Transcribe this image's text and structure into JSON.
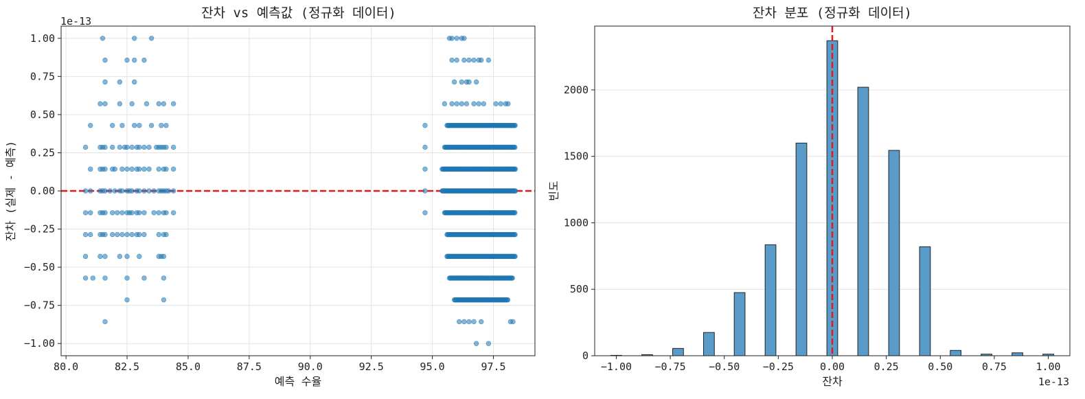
{
  "chart_data": [
    {
      "type": "scatter",
      "title": "잔차 vs 예측값 (정규화 데이터)",
      "xlabel": "예측 수율",
      "ylabel": "잔차 (실제 - 예측)",
      "xlim": [
        79.8,
        99.2
      ],
      "ylim": [
        -1.08,
        1.08
      ],
      "y_offset_label": "1e-13",
      "xticks": [
        "80.0",
        "82.5",
        "85.0",
        "87.5",
        "90.0",
        "92.5",
        "95.0",
        "97.5"
      ],
      "yticks": [
        "−1.00",
        "−0.75",
        "−0.50",
        "−0.25",
        "0.00",
        "0.25",
        "0.50",
        "0.75",
        "1.00"
      ],
      "grid": true,
      "point_color": "#1f77b4",
      "reference_line": {
        "y": 0,
        "color": "#e31a1c",
        "style": "dashed"
      },
      "y_levels": [
        -1.0,
        -0.857,
        -0.714,
        -0.571,
        -0.429,
        -0.286,
        -0.143,
        0.0,
        0.143,
        0.286,
        0.429,
        0.571,
        0.714,
        0.857,
        1.0
      ],
      "clusters": [
        {
          "x_range": [
            80.8,
            84.5
          ],
          "rows": [
            {
              "y": 1.0,
              "x": [
                81.5,
                82.8,
                83.5
              ]
            },
            {
              "y": 0.857,
              "x": [
                81.6,
                82.5,
                82.8,
                83.2
              ]
            },
            {
              "y": 0.714,
              "x": [
                81.6,
                82.2,
                82.8
              ]
            },
            {
              "y": 0.571,
              "x": [
                81.4,
                81.6,
                82.2,
                82.7,
                83.3,
                83.8,
                84.0,
                84.4
              ]
            },
            {
              "y": 0.429,
              "x": [
                81.0,
                81.9,
                82.3,
                82.8,
                83.0,
                83.5,
                83.9,
                84.1
              ]
            },
            {
              "y": 0.286,
              "x": [
                80.8,
                81.4,
                81.5,
                81.6,
                81.9,
                82.2,
                82.4,
                82.5,
                82.7,
                82.9,
                83.0,
                83.2,
                83.4,
                83.7,
                83.8,
                83.9,
                84.0,
                84.1,
                84.4
              ]
            },
            {
              "y": 0.143,
              "x": [
                81.0,
                81.4,
                81.5,
                81.6,
                81.9,
                82.0,
                82.3,
                82.5,
                82.7,
                82.9,
                83.0,
                83.2,
                83.4,
                83.8,
                84.0,
                84.1,
                84.4
              ]
            },
            {
              "y": 0.0,
              "x": [
                80.8,
                81.0,
                81.4,
                81.5,
                81.6,
                81.8,
                82.0,
                82.2,
                82.3,
                82.5,
                82.6,
                82.7,
                82.9,
                83.0,
                83.2,
                83.4,
                83.6,
                83.8,
                83.9,
                84.0,
                84.1,
                84.2,
                84.4
              ]
            },
            {
              "y": -0.143,
              "x": [
                80.8,
                81.0,
                81.4,
                81.5,
                81.6,
                81.9,
                82.1,
                82.3,
                82.5,
                82.6,
                82.7,
                82.9,
                83.0,
                83.2,
                83.6,
                83.8,
                84.0,
                84.1,
                84.4
              ]
            },
            {
              "y": -0.286,
              "x": [
                80.8,
                81.0,
                81.4,
                81.5,
                81.6,
                81.9,
                82.1,
                82.3,
                82.5,
                82.7,
                82.9,
                83.0,
                83.2,
                83.8,
                84.0,
                84.1
              ]
            },
            {
              "y": -0.429,
              "x": [
                80.8,
                81.4,
                81.6,
                82.2,
                82.5,
                83.0,
                83.8,
                83.9,
                84.0
              ]
            },
            {
              "y": -0.571,
              "x": [
                80.8,
                81.1,
                81.6,
                82.5,
                83.2,
                84.0
              ]
            },
            {
              "y": -0.714,
              "x": [
                82.5,
                84.0
              ]
            },
            {
              "y": -0.857,
              "x": [
                81.6
              ]
            }
          ]
        },
        {
          "x_range": [
            94.7,
            98.4
          ],
          "rows": [
            {
              "y": 1.0,
              "x": [
                95.7,
                95.8,
                96.0,
                96.2,
                96.3
              ]
            },
            {
              "y": 0.857,
              "x": [
                95.8,
                96.0,
                96.3,
                96.5,
                96.7,
                96.9,
                97.0,
                97.3
              ]
            },
            {
              "y": 0.714,
              "x": [
                95.9,
                96.2,
                96.4,
                96.5,
                96.8
              ]
            },
            {
              "y": 0.571,
              "x": [
                95.5,
                95.8,
                96.0,
                96.2,
                96.4,
                96.7,
                96.9,
                97.1,
                97.6,
                97.8,
                98.0,
                98.1
              ]
            },
            {
              "y": 0.429,
              "x": [
                94.7
              ],
              "band": [
                95.6,
                98.4
              ]
            },
            {
              "y": 0.286,
              "x": [
                94.7
              ],
              "band": [
                95.5,
                98.4
              ]
            },
            {
              "y": 0.143,
              "x": [
                94.7
              ],
              "band": [
                95.4,
                98.4
              ]
            },
            {
              "y": 0.0,
              "x": [
                94.7
              ],
              "band": [
                95.4,
                98.4
              ]
            },
            {
              "y": -0.143,
              "x": [
                94.7
              ],
              "band": [
                95.5,
                98.4
              ]
            },
            {
              "y": -0.286,
              "x": [],
              "band": [
                95.6,
                98.4
              ]
            },
            {
              "y": -0.429,
              "x": [],
              "band": [
                95.6,
                98.4
              ]
            },
            {
              "y": -0.571,
              "x": [],
              "band": [
                95.7,
                98.3
              ]
            },
            {
              "y": -0.714,
              "x": [],
              "band": [
                95.9,
                98.1
              ]
            },
            {
              "y": -0.857,
              "x": [
                96.1,
                96.3,
                96.5,
                96.7,
                97.0,
                98.2,
                98.3
              ]
            },
            {
              "y": -1.0,
              "x": [
                96.8,
                97.3
              ]
            }
          ]
        }
      ]
    },
    {
      "type": "bar",
      "title": "잔차 분포 (정규화 데이터)",
      "xlabel": "잔차",
      "ylabel": "빈도",
      "xlim": [
        -1.1,
        1.1
      ],
      "ylim": [
        0,
        2480
      ],
      "x_offset_label": "1e-13",
      "xticks": [
        "−1.00",
        "−0.75",
        "−0.50",
        "−0.25",
        "0.00",
        "0.25",
        "0.50",
        "0.75",
        "1.00"
      ],
      "yticks": [
        "0",
        "500",
        "1000",
        "1500",
        "2000"
      ],
      "grid": true,
      "bar_color": "#5a9bc9",
      "bar_edge": "#222222",
      "reference_line": {
        "x": 0,
        "color": "#e31a1c",
        "style": "dashed"
      },
      "bins": [
        {
          "x": -1.0,
          "count": 3
        },
        {
          "x": -0.857,
          "count": 8
        },
        {
          "x": -0.714,
          "count": 55
        },
        {
          "x": -0.571,
          "count": 175
        },
        {
          "x": -0.429,
          "count": 475
        },
        {
          "x": -0.286,
          "count": 835
        },
        {
          "x": -0.143,
          "count": 1600
        },
        {
          "x": 0.0,
          "count": 2370
        },
        {
          "x": 0.143,
          "count": 2020
        },
        {
          "x": 0.286,
          "count": 1545
        },
        {
          "x": 0.429,
          "count": 820
        },
        {
          "x": 0.571,
          "count": 40
        },
        {
          "x": 0.714,
          "count": 12
        },
        {
          "x": 0.857,
          "count": 22
        },
        {
          "x": 1.0,
          "count": 12
        }
      ]
    }
  ]
}
